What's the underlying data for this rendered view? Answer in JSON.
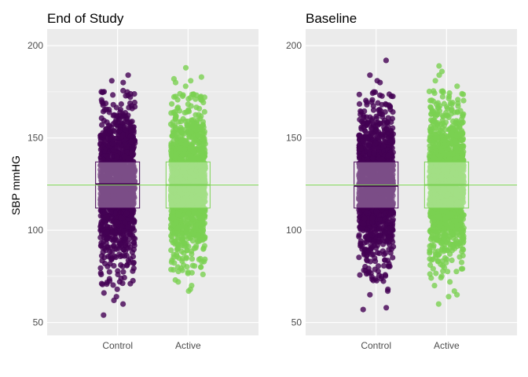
{
  "chart_data": {
    "type": "scatter",
    "subtype": "jittered strip plot with boxplot overlay",
    "ylabel": "SBP mmHG",
    "xlabel": "",
    "ylim": [
      43,
      209
    ],
    "y_ticks": [
      "50",
      "100",
      "150",
      "200"
    ],
    "grid": true,
    "legend": "none",
    "background": "#ebebeb",
    "gridline_color": "#ffffff",
    "reference_line": {
      "y": 124.5,
      "color": "#7ad151"
    },
    "series_colors": {
      "Control": "#440154",
      "Active": "#7ad151"
    },
    "panels": [
      {
        "title": "End of Study",
        "categories": [
          "Control",
          "Active"
        ],
        "groups": [
          {
            "name": "Control",
            "color": "#440154",
            "box": {
              "q1": 112,
              "median": 125,
              "q3": 137
            },
            "range": [
              54,
              185
            ],
            "dense_range": [
              70,
              176
            ],
            "extreme_points": [
              54,
              60,
              62,
              64,
              66,
              68,
              180,
              181,
              184
            ]
          },
          {
            "name": "Active",
            "color": "#7ad151",
            "box": {
              "q1": 112,
              "median": 124.5,
              "q3": 137
            },
            "range": [
              67,
              188
            ],
            "dense_range": [
              76,
              174
            ],
            "extreme_points": [
              67,
              68,
              70,
              72,
              73,
              178,
              180,
              181,
              182,
              183,
              188
            ]
          }
        ]
      },
      {
        "title": "Baseline",
        "categories": [
          "Control",
          "Active"
        ],
        "groups": [
          {
            "name": "Control",
            "color": "#440154",
            "box": {
              "q1": 112,
              "median": 124,
              "q3": 137
            },
            "range": [
              57,
              192
            ],
            "dense_range": [
              72,
              175
            ],
            "extreme_points": [
              57,
              58,
              65,
              67,
              68,
              180,
              181,
              184,
              192
            ]
          },
          {
            "name": "Active",
            "color": "#7ad151",
            "box": {
              "q1": 112,
              "median": 124.5,
              "q3": 137
            },
            "range": [
              60,
              189
            ],
            "dense_range": [
              74,
              176
            ],
            "extreme_points": [
              60,
              64,
              65,
              67,
              70,
              72,
              178,
              181,
              184,
              186,
              189
            ]
          }
        ]
      }
    ]
  }
}
